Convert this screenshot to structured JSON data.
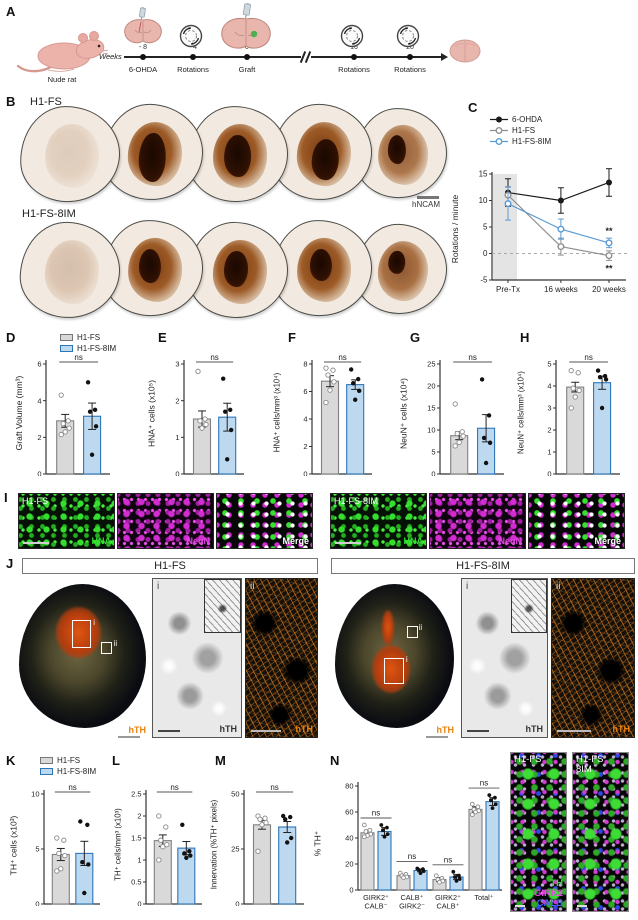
{
  "colors": {
    "gray_fill": "#d9d9d9",
    "gray_stroke": "#808080",
    "blue_fill": "#bcd9f0",
    "blue_stroke": "#2e75b6",
    "ohda": "#1a1a1a",
    "h1fs": "#909090",
    "im": "#5b9bd5",
    "orange": "#e8820c",
    "green": "#2fdd2f",
    "magenta": "#d82cd8",
    "calb_blue": "#3a50ee",
    "axis": "#333"
  },
  "legend": {
    "g1": "H1-FS",
    "g2": "H1-FS-8IM"
  },
  "panelA": {
    "letter": "A",
    "rat_caption": "Nude rat",
    "weeks_label": "Weeks",
    "events": [
      {
        "week": "- 8",
        "label": "6-OHDA",
        "icon": "brain-syringe"
      },
      {
        "week": "- 4",
        "label": "Rotations",
        "icon": "rotometer"
      },
      {
        "week": "0",
        "label": "Graft",
        "icon": "brain-graft"
      },
      {
        "week": "16",
        "label": "Rotations",
        "icon": "rotometer"
      },
      {
        "week": "20",
        "label": "Rotations",
        "icon": "rotometer"
      }
    ]
  },
  "panelB": {
    "letter": "B",
    "row1": "H1-FS",
    "row2": "H1-FS-8IM",
    "stain": "hNCAM"
  },
  "panelC": {
    "letter": "C"
  },
  "panelD": {
    "letter": "D"
  },
  "panelE": {
    "letter": "E"
  },
  "panelF": {
    "letter": "F"
  },
  "panelG": {
    "letter": "G"
  },
  "panelH": {
    "letter": "H"
  },
  "panelI": {
    "letter": "I",
    "left_title": "H1-FS",
    "right_title": "H1-FS-8IM",
    "channels": [
      "HNA",
      "NeuN",
      "Merge"
    ]
  },
  "panelJ": {
    "letter": "J",
    "left_title": "H1-FS",
    "right_title": "H1-FS-8IM",
    "stain": "hTH",
    "inset1": "i",
    "inset2": "ii"
  },
  "panelK": {
    "letter": "K"
  },
  "panelL": {
    "letter": "L"
  },
  "panelM": {
    "letter": "M"
  },
  "panelN": {
    "letter": "N"
  },
  "panelN_images": {
    "img1_title": "H1-FS",
    "img2_title_line1": "H1-FS",
    "img2_title_line2": "8IM",
    "channels": [
      "TH",
      "GIRK2",
      "CALB"
    ]
  },
  "chart_data": {
    "C": {
      "type": "line",
      "ylabel": "Rotations / minute",
      "ylim": [
        -5,
        15
      ],
      "yticks": [
        15,
        10,
        5,
        0,
        -5
      ],
      "x": [
        "Pre-Tx",
        "16 weeks",
        "20 weeks"
      ],
      "pretx_shaded": true,
      "zero_dashed": true,
      "series": [
        {
          "name": "6-OHDA",
          "color": "#1a1a1a",
          "marker": "filled",
          "values": [
            11.5,
            10.0,
            13.4
          ],
          "err": [
            2.6,
            2.4,
            2.6
          ]
        },
        {
          "name": "H1-FS",
          "color": "#909090",
          "marker": "open",
          "values": [
            11.0,
            1.3,
            -0.4
          ],
          "err": [
            1.6,
            1.6,
            0.9
          ],
          "sig": "**",
          "sig_side": "below"
        },
        {
          "name": "H1-FS-8IM",
          "color": "#5b9bd5",
          "marker": "open",
          "values": [
            9.4,
            4.6,
            2.0
          ],
          "err": [
            3.1,
            1.9,
            0.9
          ],
          "sig": "**",
          "sig_side": "above"
        }
      ]
    },
    "D": {
      "type": "bar-pair",
      "ylabel": "Graft Volume (mm³)",
      "ylim": [
        0,
        6
      ],
      "yticks": [
        0,
        2,
        4,
        6
      ],
      "sig": "ns",
      "bars": [
        {
          "group": "H1-FS",
          "value": 2.9,
          "err": 0.35,
          "points": [
            4.3,
            2.9,
            2.75,
            2.5,
            2.3,
            2.15
          ]
        },
        {
          "group": "H1-FS-8IM",
          "value": 3.15,
          "err": 0.72,
          "points": [
            5.0,
            3.5,
            3.4,
            2.6,
            1.05
          ]
        }
      ]
    },
    "E": {
      "type": "bar-pair",
      "ylabel": "HNA⁺ cells (x10⁵)",
      "ylim": [
        0,
        3
      ],
      "yticks": [
        0,
        1,
        2,
        3
      ],
      "sig": "ns",
      "bars": [
        {
          "group": "H1-FS",
          "value": 1.5,
          "err": 0.22,
          "points": [
            2.8,
            1.5,
            1.45,
            1.35,
            1.25
          ]
        },
        {
          "group": "H1-FS-8IM",
          "value": 1.55,
          "err": 0.38,
          "points": [
            2.6,
            1.75,
            1.7,
            1.2,
            0.4
          ]
        }
      ]
    },
    "F": {
      "type": "bar-pair",
      "ylabel": "HNA⁺ cells/mm³ (x10⁴)",
      "ylim": [
        0,
        8
      ],
      "yticks": [
        0,
        2,
        4,
        6,
        8
      ],
      "sig": "ns",
      "bars": [
        {
          "group": "H1-FS",
          "value": 6.75,
          "err": 0.4,
          "points": [
            7.7,
            7.55,
            7.2,
            6.7,
            6.1,
            5.2
          ]
        },
        {
          "group": "H1-FS-8IM",
          "value": 6.5,
          "err": 0.35,
          "points": [
            7.6,
            6.9,
            6.6,
            6.05,
            5.4
          ]
        }
      ]
    },
    "G": {
      "type": "bar-pair",
      "ylabel": "NeuN⁺ cells (x10⁴)",
      "ylim": [
        0,
        25
      ],
      "yticks": [
        0,
        5,
        10,
        15,
        20,
        25
      ],
      "sig": "ns",
      "bars": [
        {
          "group": "H1-FS",
          "value": 8.7,
          "err": 0.9,
          "points": [
            15.9,
            9.6,
            9.2,
            8.6,
            7.2,
            6.4
          ]
        },
        {
          "group": "H1-FS-8IM",
          "value": 10.4,
          "err": 3.1,
          "points": [
            21.5,
            13.3,
            8.2,
            7.1,
            2.5
          ]
        }
      ]
    },
    "H": {
      "type": "bar-pair",
      "ylabel": "NeuN⁺ cells/mm³ (x10⁴)",
      "ylim": [
        0,
        5
      ],
      "yticks": [
        0,
        1,
        2,
        3,
        4,
        5
      ],
      "sig": "ns",
      "bars": [
        {
          "group": "H1-FS",
          "value": 3.95,
          "err": 0.22,
          "points": [
            4.7,
            4.6,
            3.9,
            3.8,
            3.5,
            3.0
          ]
        },
        {
          "group": "H1-FS-8IM",
          "value": 4.15,
          "err": 0.3,
          "points": [
            4.7,
            4.45,
            4.4,
            4.3,
            3.0
          ]
        }
      ]
    },
    "K": {
      "type": "bar-pair",
      "ylabel": "TH⁺ cells (x10³)",
      "ylim": [
        0,
        10
      ],
      "yticks": [
        0,
        5,
        10
      ],
      "sig": "ns",
      "bars": [
        {
          "group": "H1-FS",
          "value": 4.5,
          "err": 0.55,
          "points": [
            6.0,
            5.8,
            4.6,
            4.4,
            3.2,
            3.0
          ]
        },
        {
          "group": "H1-FS-8IM",
          "value": 4.6,
          "err": 1.1,
          "points": [
            7.5,
            7.2,
            3.8,
            3.6,
            1.0
          ]
        }
      ]
    },
    "L": {
      "type": "bar-pair",
      "ylabel": "TH⁺ cells/mm³ (x10³)",
      "ylim": [
        0,
        2.5
      ],
      "yticks": [
        0,
        0.5,
        1,
        1.5,
        2,
        2.5
      ],
      "sig": "ns",
      "bars": [
        {
          "group": "H1-FS",
          "value": 1.44,
          "err": 0.13,
          "points": [
            2.0,
            1.75,
            1.45,
            1.35,
            1.3,
            1.0
          ]
        },
        {
          "group": "H1-FS-8IM",
          "value": 1.27,
          "err": 0.15,
          "points": [
            1.8,
            1.2,
            1.15,
            1.1,
            1.05
          ]
        }
      ]
    },
    "M": {
      "type": "bar-pair",
      "ylabel": "Innervation (%TH⁺ pixels)",
      "ylim": [
        0,
        50
      ],
      "yticks": [
        0,
        25,
        50
      ],
      "sig": "ns",
      "bars": [
        {
          "group": "H1-FS",
          "value": 36,
          "err": 2,
          "points": [
            40,
            39,
            38.5,
            37,
            36,
            24
          ]
        },
        {
          "group": "H1-FS-8IM",
          "value": 35,
          "err": 2.5,
          "points": [
            40,
            39.5,
            38.5,
            30,
            28
          ]
        }
      ]
    },
    "N": {
      "type": "grouped-bar",
      "ylabel": "% TH⁺",
      "ylim": [
        0,
        80
      ],
      "yticks": [
        0,
        20,
        40,
        60,
        80
      ],
      "categories": [
        [
          "GIRK2⁺",
          "CALB⁻"
        ],
        [
          "CALB⁺",
          "GIRK2⁻"
        ],
        [
          "GIRK2⁺",
          "CALB⁺"
        ],
        [
          "Total⁺"
        ]
      ],
      "sig": [
        "ns",
        "ns",
        "ns",
        "ns"
      ],
      "series": [
        {
          "name": "H1-FS",
          "values": [
            44,
            11,
            8,
            62
          ],
          "err": [
            2,
            1,
            1.5,
            2
          ],
          "points": [
            [
              50,
              46,
              45,
              43,
              42,
              41
            ],
            [
              13,
              12,
              11,
              10,
              9.5
            ],
            [
              11,
              9,
              8,
              7,
              6
            ],
            [
              66,
              64,
              62,
              61,
              60,
              58
            ]
          ]
        },
        {
          "name": "H1-FS-8IM",
          "values": [
            45,
            15,
            10,
            68
          ],
          "err": [
            3,
            1,
            2,
            3
          ],
          "points": [
            [
              50,
              48,
              46,
              43,
              41
            ],
            [
              16.5,
              16,
              15.5,
              14.5,
              13
            ],
            [
              14,
              11,
              10,
              8.5,
              7
            ],
            [
              73,
              71,
              69,
              66,
              63
            ]
          ]
        }
      ]
    }
  }
}
